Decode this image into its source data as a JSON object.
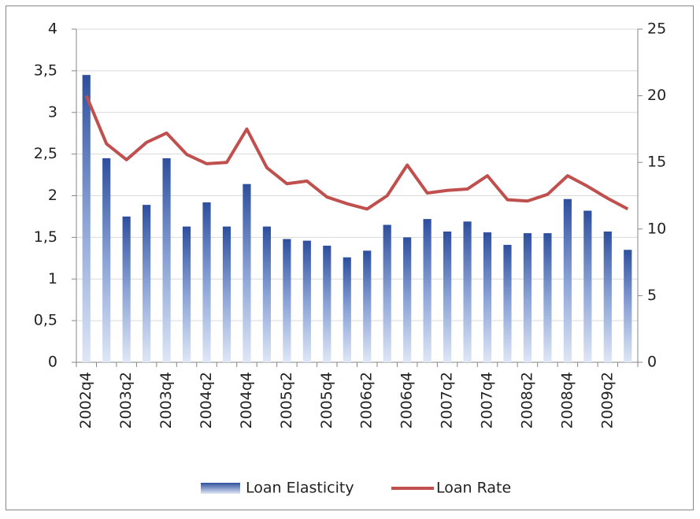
{
  "chart_data": {
    "type": "bar_line",
    "categories": [
      "2002q4",
      null,
      "2003q2",
      null,
      "2003q4",
      null,
      "2004q2",
      null,
      "2004q4",
      null,
      "2005q2",
      null,
      "2005q4",
      null,
      "2006q2",
      null,
      "2006q4",
      null,
      "2007q2",
      null,
      "2007q4",
      null,
      "2008q2",
      null,
      "2008q4",
      null,
      "2009q2",
      null
    ],
    "series": [
      {
        "name": "Loan Elasticity",
        "type": "bar",
        "color": "#2e4f9e",
        "values": [
          3.45,
          2.45,
          1.75,
          1.89,
          2.45,
          1.63,
          1.92,
          1.63,
          2.14,
          1.63,
          1.48,
          1.46,
          1.4,
          1.26,
          1.34,
          1.65,
          1.5,
          1.72,
          1.57,
          1.69,
          1.56,
          1.41,
          1.55,
          1.55,
          1.96,
          1.82,
          1.57,
          1.35
        ]
      },
      {
        "name": "Loan Rate",
        "type": "line",
        "axis": "y2",
        "color": "#c0504d",
        "values": [
          20.0,
          16.4,
          15.2,
          16.5,
          17.2,
          15.6,
          14.9,
          15.0,
          17.5,
          14.6,
          13.4,
          13.6,
          12.4,
          11.9,
          11.5,
          12.5,
          14.8,
          12.7,
          12.9,
          13.0,
          14.0,
          12.2,
          12.1,
          12.6,
          14.0,
          13.2,
          12.3,
          11.5
        ]
      }
    ],
    "ylim": [
      0,
      4
    ],
    "yticks": [
      0,
      {
        "value": 0.5,
        "label": "0,5"
      },
      1,
      {
        "value": 1.5,
        "label": "1,5"
      },
      2,
      {
        "value": 2.5,
        "label": "2,5"
      },
      3,
      {
        "value": 3.5,
        "label": "3,5"
      },
      4
    ],
    "y2lim": [
      0,
      25
    ],
    "y2ticks": [
      0,
      5,
      10,
      15,
      20,
      25
    ],
    "grid": true,
    "legend": "bottom"
  }
}
